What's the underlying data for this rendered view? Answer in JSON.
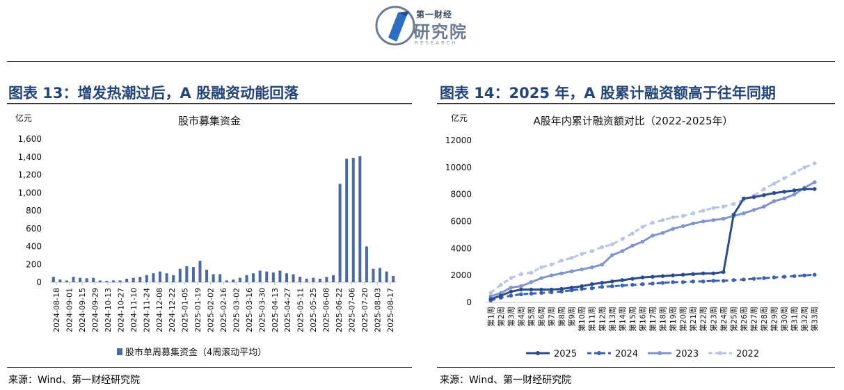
{
  "logo": {
    "small": "第一财经",
    "big": "研究院",
    "sub": "RESEARCH"
  },
  "left": {
    "heading": "图表 13：增发热潮过后，A 股融资动能回落",
    "source": "来源：Wind、第一财经研究院"
  },
  "right": {
    "heading": "图表 14：2025 年，A 股累计融资额高于往年同期",
    "source": "来源：Wind、第一财经研究院"
  },
  "chart_data": [
    {
      "type": "bar",
      "title": "股市募集资金",
      "ylabel": "亿元",
      "ylim": [
        0,
        1600
      ],
      "yticks": [
        "0",
        "200",
        "400",
        "600",
        "800",
        "1,000",
        "1,200",
        "1,400",
        "1,600"
      ],
      "xticks": [
        "2024-08-18",
        "2024-09-01",
        "2024-09-15",
        "2024-09-29",
        "2024-10-13",
        "2024-10-27",
        "2024-11-10",
        "2024-11-24",
        "2024-12-08",
        "2024-12-22",
        "2025-01-05",
        "2025-01-19",
        "2025-02-02",
        "2025-02-16",
        "2025-03-02",
        "2025-03-16",
        "2025-03-30",
        "2025-04-13",
        "2025-04-27",
        "2025-05-11",
        "2025-05-25",
        "2025-06-08",
        "2025-06-22",
        "2025-07-06",
        "2025-07-20",
        "2025-08-03",
        "2025-08-17"
      ],
      "series": [
        {
          "name": "股市单周募集资金（4周滚动平均）",
          "color": "#4a6aa5",
          "values": [
            60,
            30,
            20,
            60,
            50,
            45,
            50,
            20,
            15,
            20,
            20,
            40,
            50,
            60,
            80,
            100,
            120,
            100,
            80,
            150,
            180,
            170,
            240,
            140,
            90,
            90,
            20,
            30,
            50,
            80,
            100,
            130,
            120,
            110,
            130,
            100,
            90,
            60,
            40,
            50,
            40,
            60,
            80,
            1100,
            1380,
            1390,
            1410,
            400,
            150,
            160,
            120,
            70
          ]
        }
      ]
    },
    {
      "type": "line",
      "title": "A股年内累计融资额对比（2022-2025年）",
      "ylabel": "亿元",
      "ylim": [
        0,
        12000
      ],
      "yticks": [
        "0",
        "2000",
        "4000",
        "6000",
        "8000",
        "10000",
        "12000"
      ],
      "categories": [
        "第1周",
        "第2周",
        "第3周",
        "第4周",
        "第5周",
        "第6周",
        "第7周",
        "第8周",
        "第9周",
        "第10周",
        "第11周",
        "第12周",
        "第13周",
        "第14周",
        "第15周",
        "第16周",
        "第17周",
        "第18周",
        "第19周",
        "第20周",
        "第21周",
        "第22周",
        "第23周",
        "第24周",
        "第25周",
        "第26周",
        "第27周",
        "第28周",
        "第29周",
        "第30周",
        "第31周",
        "第32周",
        "第33周"
      ],
      "series": [
        {
          "name": "2025",
          "color": "#2b4c8a",
          "dash": "solid",
          "values": [
            250,
            500,
            800,
            950,
            950,
            950,
            950,
            1000,
            1100,
            1200,
            1350,
            1450,
            1550,
            1650,
            1750,
            1850,
            1900,
            1950,
            2000,
            2050,
            2100,
            2150,
            2150,
            2250,
            6500,
            7700,
            7800,
            7950,
            8100,
            8200,
            8300,
            8400,
            8400
          ]
        },
        {
          "name": "2024",
          "color": "#3b63b0",
          "dash": "dashed",
          "values": [
            150,
            350,
            500,
            600,
            650,
            700,
            750,
            800,
            900,
            1000,
            1050,
            1150,
            1200,
            1250,
            1300,
            1350,
            1400,
            1450,
            1500,
            1500,
            1550,
            1550,
            1600,
            1600,
            1650,
            1700,
            1750,
            1800,
            1850,
            1900,
            1950,
            2000,
            2050
          ]
        },
        {
          "name": "2023",
          "color": "#7f95cc",
          "dash": "solid",
          "values": [
            450,
            700,
            1100,
            1200,
            1500,
            1800,
            2000,
            2150,
            2300,
            2450,
            2600,
            2800,
            3500,
            3800,
            4200,
            4500,
            4950,
            5150,
            5450,
            5650,
            5850,
            6000,
            6100,
            6200,
            6400,
            6600,
            6850,
            7100,
            7500,
            7700,
            8000,
            8500,
            8900
          ]
        },
        {
          "name": "2022",
          "color": "#b8c4e2",
          "dash": "dashed",
          "values": [
            700,
            1300,
            1800,
            2100,
            2200,
            2600,
            2800,
            3100,
            3300,
            3600,
            3800,
            4100,
            4300,
            4700,
            5100,
            5600,
            5900,
            6100,
            6300,
            6400,
            6600,
            6800,
            7000,
            7100,
            7300,
            7600,
            7900,
            8400,
            8800,
            9200,
            9600,
            10000,
            10300
          ]
        }
      ]
    }
  ]
}
